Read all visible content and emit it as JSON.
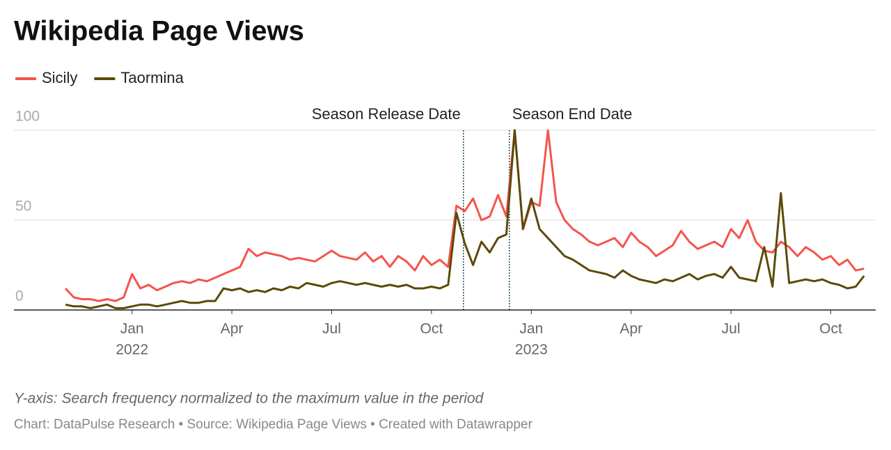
{
  "chart_data": {
    "type": "line",
    "title": "Wikipedia Page Views",
    "note": "Y-axis: Search frequency normalized to the maximum value in the period",
    "credit": "Chart: DataPulse Research • Source: Wikipedia Page Views • Created with Datawrapper",
    "x": [
      -2,
      -1.75,
      -1.5,
      -1.25,
      -1,
      -0.75,
      -0.5,
      -0.25,
      0,
      0.25,
      0.5,
      0.75,
      1,
      1.25,
      1.5,
      1.75,
      2,
      2.25,
      2.5,
      2.75,
      3,
      3.25,
      3.5,
      3.75,
      4,
      4.25,
      4.5,
      4.75,
      5,
      5.25,
      5.5,
      5.75,
      6,
      6.25,
      6.5,
      6.75,
      7,
      7.25,
      7.5,
      7.75,
      8,
      8.25,
      8.5,
      8.75,
      9,
      9.25,
      9.5,
      9.75,
      10,
      10.25,
      10.5,
      10.75,
      11,
      11.25,
      11.5,
      11.75,
      12,
      12.25,
      12.5,
      12.75,
      13,
      13.25,
      13.5,
      13.75,
      14,
      14.25,
      14.5,
      14.75,
      15,
      15.25,
      15.5,
      15.75,
      16,
      16.25,
      16.5,
      16.75,
      17,
      17.25,
      17.5,
      17.75,
      18,
      18.25,
      18.5,
      18.75,
      19,
      19.25,
      19.5,
      19.75,
      20,
      20.25,
      20.5,
      20.75,
      21,
      21.25,
      21.5,
      21.75,
      22
    ],
    "series": [
      {
        "name": "Sicily",
        "color": "#f4544c",
        "values": [
          12,
          7,
          6,
          6,
          5,
          6,
          5,
          7,
          20,
          12,
          14,
          11,
          13,
          15,
          16,
          15,
          17,
          16,
          18,
          20,
          22,
          24,
          34,
          30,
          32,
          31,
          30,
          28,
          29,
          28,
          27,
          30,
          33,
          30,
          29,
          28,
          32,
          27,
          30,
          24,
          30,
          27,
          22,
          30,
          25,
          28,
          24,
          58,
          55,
          62,
          50,
          52,
          64,
          52,
          100,
          45,
          60,
          58,
          100,
          60,
          50,
          45,
          42,
          38,
          36,
          38,
          40,
          35,
          43,
          38,
          35,
          30,
          33,
          36,
          44,
          38,
          34,
          36,
          38,
          35,
          45,
          40,
          50,
          38,
          33,
          32,
          38,
          35,
          30,
          35,
          32,
          28,
          30,
          25,
          28,
          22,
          23
        ]
      },
      {
        "name": "Taormina",
        "color": "#5b4a08",
        "values": [
          3,
          2,
          2,
          1,
          2,
          3,
          1,
          1,
          2,
          3,
          3,
          2,
          3,
          4,
          5,
          4,
          4,
          5,
          5,
          12,
          11,
          12,
          10,
          11,
          10,
          12,
          11,
          13,
          12,
          15,
          14,
          13,
          15,
          16,
          15,
          14,
          15,
          14,
          13,
          14,
          13,
          14,
          12,
          12,
          13,
          12,
          14,
          54,
          37,
          25,
          38,
          32,
          40,
          42,
          100,
          45,
          62,
          45,
          40,
          35,
          30,
          28,
          25,
          22,
          21,
          20,
          18,
          22,
          19,
          17,
          16,
          15,
          17,
          16,
          18,
          20,
          17,
          19,
          20,
          18,
          24,
          18,
          17,
          16,
          35,
          13,
          65,
          15,
          16,
          17,
          16,
          17,
          15,
          14,
          12,
          13,
          19
        ]
      }
    ],
    "xlim": [
      -3.55,
      22.35
    ],
    "ylim": [
      0,
      100
    ],
    "yticks": [
      0,
      50,
      100
    ],
    "xticks": [
      {
        "value": 0,
        "label": "Jan"
      },
      {
        "value": 3,
        "label": "Apr"
      },
      {
        "value": 6,
        "label": "Jul"
      },
      {
        "value": 9,
        "label": "Oct"
      },
      {
        "value": 12,
        "label": "Jan"
      },
      {
        "value": 15,
        "label": "Apr"
      },
      {
        "value": 18,
        "label": "Jul"
      },
      {
        "value": 21,
        "label": "Oct"
      }
    ],
    "year_labels": [
      {
        "value": 0,
        "label": "2022"
      },
      {
        "value": 12,
        "label": "2023"
      }
    ],
    "annotations": [
      {
        "x": 9.96,
        "text": "Season Release Date",
        "side": "left"
      },
      {
        "x": 11.34,
        "text": "Season End Date",
        "side": "right"
      }
    ],
    "grid": true
  }
}
